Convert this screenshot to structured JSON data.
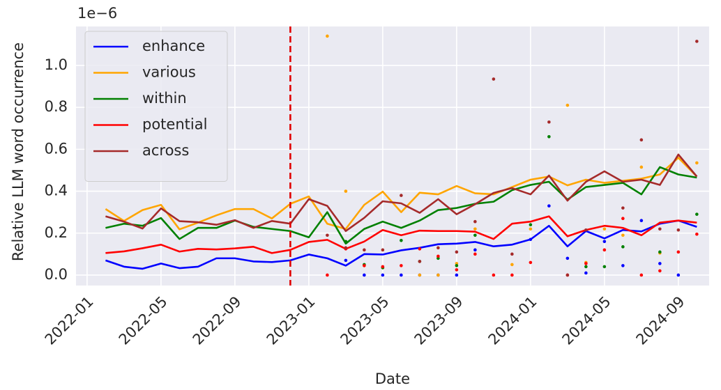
{
  "chart_data": {
    "type": "line",
    "x_label": "Date",
    "y_label": "Relative LLM word occurrence",
    "y_offset_label": "1e−6",
    "x": [
      "2022-02",
      "2022-03",
      "2022-04",
      "2022-05",
      "2022-06",
      "2022-07",
      "2022-08",
      "2022-09",
      "2022-10",
      "2022-11",
      "2022-12",
      "2023-01",
      "2023-02",
      "2023-03",
      "2023-04",
      "2023-05",
      "2023-06",
      "2023-07",
      "2023-08",
      "2023-09",
      "2023-10",
      "2023-11",
      "2023-12",
      "2024-01",
      "2024-02",
      "2024-03",
      "2024-04",
      "2024-05",
      "2024-06",
      "2024-07",
      "2024-08",
      "2024-09",
      "2024-10"
    ],
    "points_x": [
      "2023-02",
      "2023-03",
      "2023-04",
      "2023-05",
      "2023-06",
      "2023-07",
      "2023-08",
      "2023-09",
      "2023-10",
      "2023-11",
      "2023-12",
      "2024-01",
      "2024-02",
      "2024-03",
      "2024-04",
      "2024-05",
      "2024-06",
      "2024-07",
      "2024-08",
      "2024-09",
      "2024-10"
    ],
    "series": [
      {
        "name": "enhance",
        "color": "#0000ff",
        "values": [
          0.07,
          0.04,
          0.03,
          0.055,
          0.033,
          0.04,
          0.08,
          0.08,
          0.065,
          0.062,
          0.07,
          0.098,
          0.08,
          0.045,
          0.1,
          0.098,
          0.118,
          0.13,
          0.147,
          0.15,
          0.158,
          0.137,
          0.145,
          0.17,
          0.235,
          0.137,
          0.21,
          0.175,
          0.215,
          0.208,
          0.245,
          0.26,
          0.23
        ],
        "points": [
          null,
          0.07,
          0,
          0,
          0,
          0,
          0,
          0,
          0.12,
          null,
          null,
          0.17,
          0.33,
          0.08,
          0.01,
          0.16,
          0.045,
          0.26,
          0.055,
          0,
          null
        ]
      },
      {
        "name": "various",
        "color": "#ffa500",
        "values": [
          0.315,
          0.258,
          0.31,
          0.335,
          0.218,
          0.25,
          0.285,
          0.315,
          0.315,
          0.27,
          0.34,
          0.375,
          0.245,
          0.22,
          0.335,
          0.398,
          0.3,
          0.393,
          0.385,
          0.425,
          0.39,
          0.385,
          0.42,
          0.455,
          0.47,
          0.428,
          0.455,
          0.44,
          0.45,
          0.46,
          0.48,
          0.56,
          0.47
        ],
        "points": [
          1.14,
          0.4,
          0.045,
          0.035,
          null,
          0,
          0,
          0.055,
          0.22,
          null,
          0.05,
          0.22,
          null,
          0.81,
          0.06,
          0.22,
          0.19,
          0.515,
          0.105,
          null,
          0.535
        ]
      },
      {
        "name": "within",
        "color": "#008000",
        "values": [
          0.225,
          0.245,
          0.235,
          0.272,
          0.172,
          0.225,
          0.225,
          0.26,
          0.23,
          0.22,
          0.21,
          0.18,
          0.3,
          0.15,
          0.22,
          0.255,
          0.225,
          0.26,
          0.31,
          0.32,
          0.34,
          0.35,
          0.405,
          0.43,
          0.445,
          0.36,
          0.42,
          0.43,
          0.44,
          0.385,
          0.515,
          0.48,
          0.465
        ],
        "points": [
          null,
          0.16,
          0.05,
          0.035,
          0.165,
          0.065,
          0.08,
          0.045,
          0.19,
          null,
          null,
          0.24,
          0.66,
          null,
          0.04,
          0.04,
          0.135,
          null,
          0.11,
          null,
          0.29
        ]
      },
      {
        "name": "potential",
        "color": "#ff0000",
        "values": [
          0.105,
          0.113,
          0.128,
          0.145,
          0.112,
          0.125,
          0.122,
          0.127,
          0.135,
          0.105,
          0.12,
          0.158,
          0.168,
          0.125,
          0.16,
          0.215,
          0.19,
          0.212,
          0.21,
          0.21,
          0.207,
          0.172,
          0.245,
          0.255,
          0.28,
          0.185,
          0.215,
          0.235,
          0.225,
          0.19,
          0.25,
          0.26,
          0.25
        ],
        "points": [
          0,
          0.125,
          0.045,
          0.04,
          0.045,
          0.125,
          0.09,
          0.025,
          0.1,
          0,
          0,
          0.06,
          null,
          0,
          0.055,
          0.12,
          0.27,
          0,
          0.02,
          0.11,
          0.195
        ]
      },
      {
        "name": "across",
        "color": "#a52a2a",
        "values": [
          0.28,
          0.255,
          0.222,
          0.318,
          0.257,
          0.252,
          0.24,
          0.262,
          0.225,
          0.258,
          0.245,
          0.362,
          0.33,
          0.21,
          0.273,
          0.352,
          0.342,
          0.297,
          0.362,
          0.29,
          0.338,
          0.392,
          0.415,
          0.385,
          0.475,
          0.355,
          0.445,
          0.495,
          0.445,
          0.455,
          0.43,
          0.575,
          0.47
        ],
        "points": [
          0.19,
          0.13,
          0.12,
          0.12,
          0.38,
          0.065,
          0.13,
          0.11,
          0.255,
          0.935,
          0.1,
          null,
          0.73,
          0,
          0.215,
          null,
          0.32,
          0.645,
          0.22,
          0.215,
          1.115
        ]
      }
    ],
    "xlim": [
      "2021-12-13",
      "2024-10-21"
    ],
    "xticks": [
      "2022-01",
      "2022-05",
      "2022-09",
      "2023-01",
      "2023-05",
      "2023-09",
      "2024-01",
      "2024-05",
      "2024-09"
    ],
    "ylim": [
      -0.05,
      1.186
    ],
    "yticks": [
      {
        "value": 0,
        "label": "0.0"
      },
      {
        "value": 0.2,
        "label": "0.2"
      },
      {
        "value": 0.4,
        "label": "0.4"
      },
      {
        "value": 0.6,
        "label": "0.6"
      },
      {
        "value": 0.8,
        "label": "0.8"
      },
      {
        "value": 1,
        "label": "1.0"
      }
    ],
    "vline": {
      "x": "2022-12",
      "color": "#e00000"
    },
    "grid": true,
    "legend": "upper left"
  }
}
